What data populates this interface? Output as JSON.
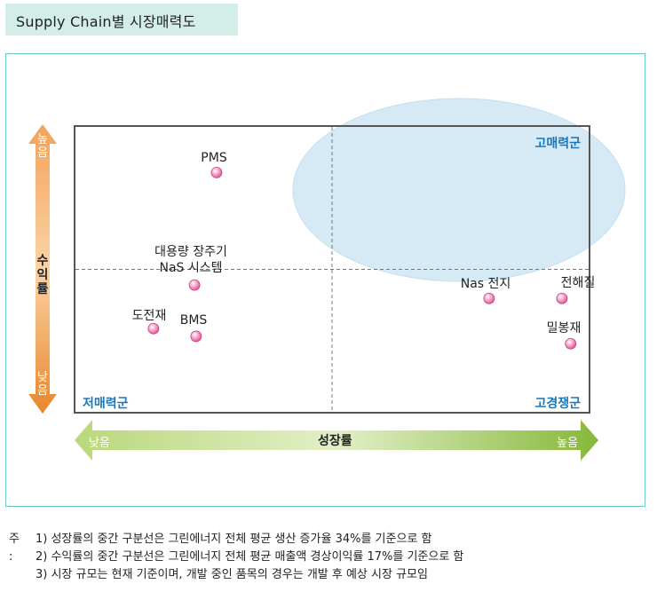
{
  "header": {
    "title": "Supply Chain별 시장매력도"
  },
  "colors": {
    "frame_border": "#6cc8c4",
    "title_bg": "#d3ede9",
    "ellipse_fill": "#d6eaf6",
    "point_pink": "#e86aa6",
    "quadrant_label": "#1b76b9",
    "y_arrow_top": "#f3a25a",
    "y_arrow_bottom": "#e8862a",
    "x_arrow_left": "#b9d87a",
    "x_arrow_right": "#86b83a"
  },
  "chart_data": {
    "type": "scatter",
    "title": "Supply Chain별 시장매력도",
    "xlabel": "성장률",
    "ylabel": "수익률",
    "x_axis_ends": {
      "low": "낮음",
      "high": "높음"
    },
    "y_axis_ends": {
      "low": "낮음",
      "high": "높음"
    },
    "xlim": [
      0,
      100
    ],
    "ylim": [
      0,
      100
    ],
    "divider": {
      "x": 50,
      "y": 50,
      "style": "dashed"
    },
    "quadrants": {
      "top_right": "고매력군",
      "bottom_left": "저매력군",
      "bottom_right": "고경쟁군"
    },
    "highlight_region": {
      "shape": "ellipse",
      "quadrant": "top_right"
    },
    "grid": false,
    "points": [
      {
        "label": "PMS",
        "x": 27.5,
        "y": 84
      },
      {
        "label": "대용량 장주기\nNaS 시스템",
        "line1": "대용량 장주기",
        "line2": "NaS 시스템",
        "x": 23.2,
        "y": 44.5
      },
      {
        "label": "도전재",
        "x": 15.2,
        "y": 29.2
      },
      {
        "label": "BMS",
        "x": 23.5,
        "y": 26.5
      },
      {
        "label": "Nas 전지",
        "x": 80.6,
        "y": 39.8
      },
      {
        "label": "전해질",
        "x": 94.8,
        "y": 39.8
      },
      {
        "label": "밀봉재",
        "x": 96.5,
        "y": 23.9
      }
    ]
  },
  "notes": {
    "prefix": "주 :",
    "lines": [
      "1) 성장률의 중간 구분선은 그린에너지 전체 평균 생산 증가율 34%를 기준으로 함",
      "2) 수익률의 중간 구분선은 그린에너지 전체 평균 매출액 경상이익률 17%를 기준으로 함",
      "3) 시장 규모는 현재 기준이며, 개발 중인 품목의 경우는 개발 후 예상 시장 규모임"
    ]
  }
}
